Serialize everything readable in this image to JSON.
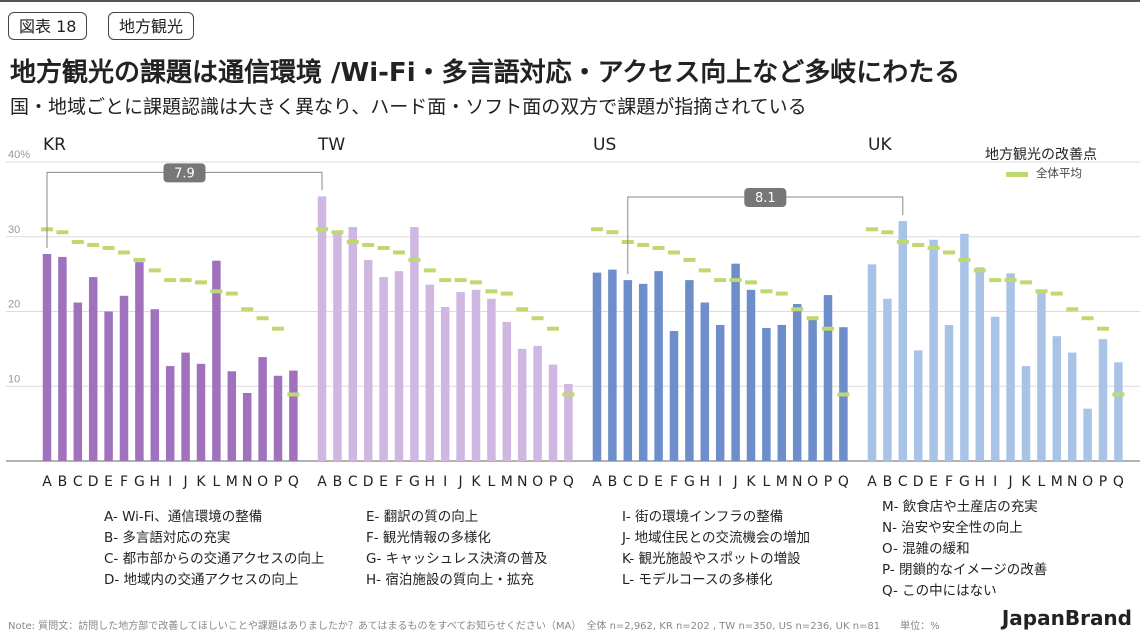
{
  "figure_tag": "図表 18",
  "topic_tag": "地方観光",
  "title": "地方観光の課題は通信環境 /Wi-Fi・多言語対応・アクセス向上など多岐にわたる",
  "subtitle": "国・地域ごとに課題認識は大きく異なり、ハード面・ソフト面の双方で課題が指摘されている",
  "legend_title": "地方観光の改善点",
  "legend_avg": "全体平均",
  "colors": {
    "KR": "#a072bd",
    "TW": "#cfb7e1",
    "US": "#6d8ecb",
    "UK": "#a9c3e6",
    "avg": "#bfd86f"
  },
  "legend_cols": [
    [
      "A- Wi-Fi、通信環境の整備",
      "B- 多言語対応の充実",
      "C- 都市部からの交通アクセスの向上",
      "D- 地域内の交通アクセスの向上"
    ],
    [
      "E- 翻訳の質の向上",
      "F- 観光情報の多様化",
      "G- キャッシュレス決済の普及",
      "H- 宿泊施設の質向上・拡充"
    ],
    [
      "I- 街の環境インフラの整備",
      "J- 地域住民との交流機会の増加",
      "K- 観光施設やスポットの増設",
      "L- モデルコースの多様化"
    ],
    [
      "M- 飲食店や土産店の充実",
      "N- 治安や安全性の向上",
      "O- 混雑の緩和",
      "P- 閉鎖的なイメージの改善",
      "Q- この中にはない"
    ]
  ],
  "note": "Note: 質問文：訪問した地方部で改善してほしいことや課題はありましたか？あてはまるものをすべてお知らせください（MA）　全体 n=2,962, KR n=202 , TW n=350, US n=236, UK n=81　　単位：%",
  "brand": "JapanBrand",
  "chart_data": {
    "type": "bar",
    "ylim": [
      0,
      40
    ],
    "yticks": [
      10,
      20,
      30,
      40
    ],
    "ytick_labels": [
      "10",
      "20",
      "30",
      "40%"
    ],
    "categories": [
      "A",
      "B",
      "C",
      "D",
      "E",
      "F",
      "G",
      "H",
      "I",
      "J",
      "K",
      "L",
      "M",
      "N",
      "O",
      "P",
      "Q"
    ],
    "overall_average": [
      31,
      30.6,
      29.3,
      28.9,
      28.5,
      27.9,
      26.9,
      25.5,
      24.2,
      24.2,
      23.9,
      22.7,
      22.4,
      20.3,
      19.1,
      17.7,
      8.9
    ],
    "series": [
      {
        "name": "KR",
        "values": [
          27.7,
          27.3,
          21.2,
          24.6,
          20.0,
          22.1,
          26.6,
          20.3,
          12.7,
          14.5,
          13.0,
          26.8,
          12.0,
          9.1,
          13.9,
          11.4,
          12.1
        ]
      },
      {
        "name": "TW",
        "values": [
          35.4,
          30.6,
          31.3,
          26.9,
          24.6,
          25.4,
          31.3,
          23.6,
          20.6,
          22.6,
          22.9,
          21.7,
          18.6,
          15.0,
          15.4,
          12.9,
          10.3
        ]
      },
      {
        "name": "US",
        "values": [
          25.2,
          25.6,
          24.2,
          23.7,
          25.4,
          17.4,
          24.2,
          21.2,
          18.2,
          26.4,
          22.9,
          17.8,
          18.2,
          21.0,
          19.1,
          22.2,
          17.9
        ]
      },
      {
        "name": "UK",
        "values": [
          26.3,
          21.7,
          32.1,
          14.8,
          29.6,
          18.2,
          30.4,
          25.9,
          19.3,
          25.1,
          12.7,
          22.9,
          16.7,
          14.5,
          7.0,
          16.3,
          13.2
        ]
      }
    ],
    "callouts": [
      {
        "label": "7.9",
        "from_series": "KR",
        "to_series": "TW",
        "category": "A"
      },
      {
        "label": "8.1",
        "from_series": "US",
        "to_series": "UK",
        "category": "C"
      }
    ]
  }
}
